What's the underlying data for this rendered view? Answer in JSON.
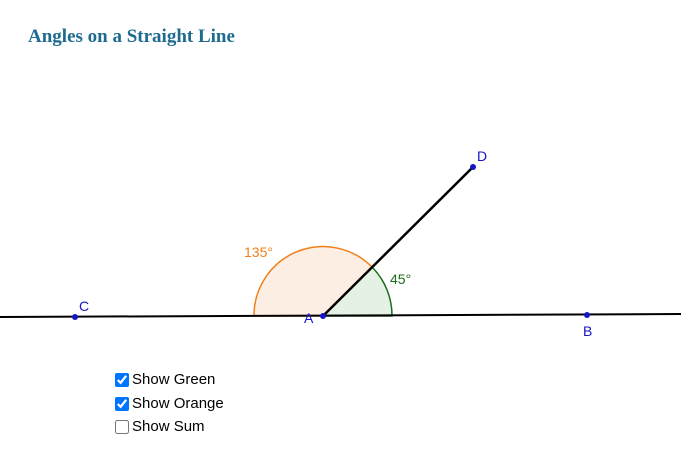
{
  "header": {
    "title": "Angles on a Straight Line"
  },
  "points": [
    {
      "label": "A"
    },
    {
      "label": "B"
    },
    {
      "label": "C"
    },
    {
      "label": "D"
    }
  ],
  "angles": [
    {
      "label": "135°"
    },
    {
      "label": "45°"
    }
  ],
  "checkboxes": [
    {
      "label": "Show Green",
      "checked": true
    },
    {
      "label": "Show Orange",
      "checked": true
    },
    {
      "label": "Show Sum",
      "checked": false
    }
  ]
}
